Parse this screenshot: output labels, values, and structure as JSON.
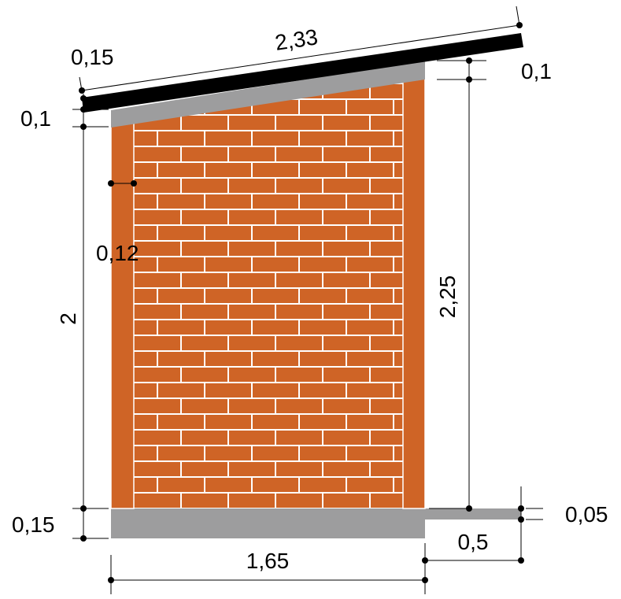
{
  "colors": {
    "brick": "#cf6426",
    "mortar": "#ffffff",
    "concrete": "#9d9d9e",
    "roof": "#000000",
    "dimension_line": "#000000",
    "background": "#ffffff"
  },
  "dimensions": {
    "roof_length": "2,33",
    "roof_thickness": "0,15",
    "top_band_left": "0,1",
    "top_band_right": "0,1",
    "post_width": "0,12",
    "left_height": "2",
    "right_height": "2,25",
    "foundation_height": "0,15",
    "step_height": "0,05",
    "step_width": "0,5",
    "base_width": "1,65"
  }
}
